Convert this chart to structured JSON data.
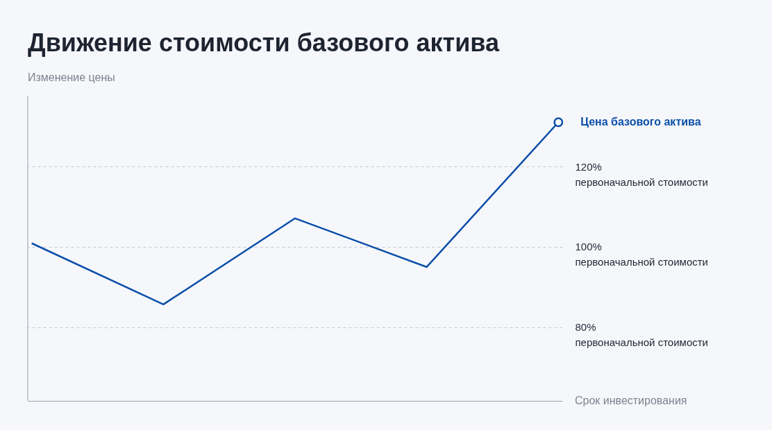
{
  "chart_data": {
    "type": "line",
    "title": "Движение стоимости базового актива",
    "xlabel": "Срок инвестирования",
    "ylabel": "Изменение цены",
    "categories": [
      null,
      null,
      null,
      null,
      null
    ],
    "series": [
      {
        "name": "Цена базового актива",
        "color": "#0a4fa8",
        "values": [
          100.9,
          85.7,
          107.1,
          95.0,
          131.0
        ]
      }
    ],
    "ylim": [
      61.7,
      137.6
    ],
    "yticks": [
      {
        "value": 80,
        "label": "80% первоначальной стоимости"
      },
      {
        "value": 100,
        "label": "100% первоначальной стоимости"
      },
      {
        "value": 120,
        "label": "120% первоначальной стоимости"
      }
    ],
    "grid": "y",
    "line_style": "solid"
  }
}
